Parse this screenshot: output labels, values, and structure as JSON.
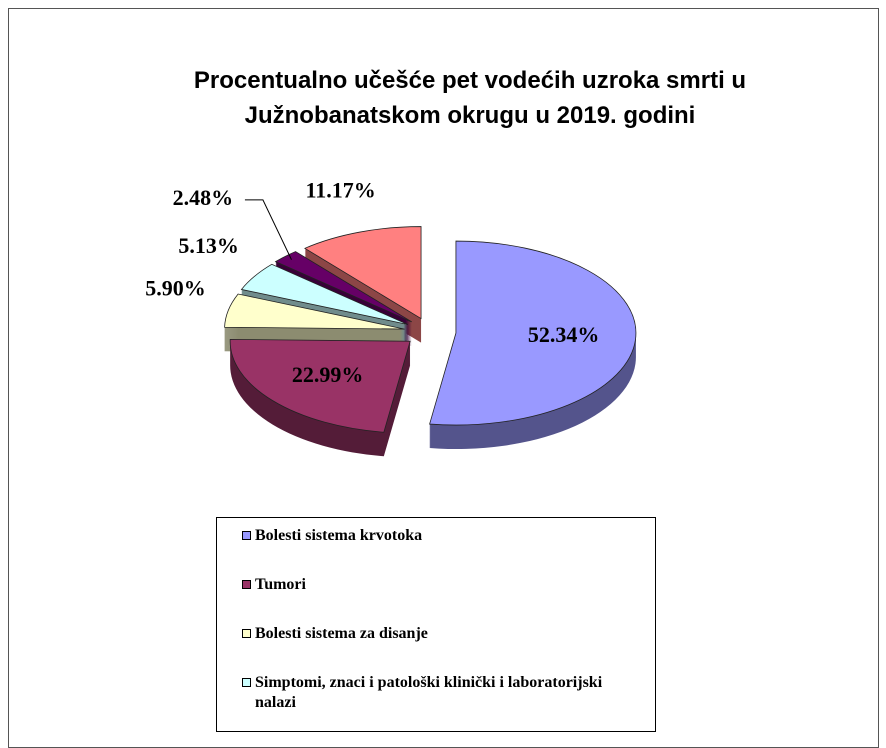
{
  "chart_data": {
    "type": "pie",
    "title": "Procentualno učešće pet vodećih uzroka smrti u Južnobanatskom okrugu u 2019. godini",
    "title_lines": [
      "Procentualno učešće pet vodećih uzroka smrti u",
      "Južnobanatskom okrugu u 2019. godini"
    ],
    "categories": [
      "Bolesti sistema krvotoka",
      "Tumori",
      "Bolesti sistema za disanje",
      "Simptomi, znaci i patološki klinički i laboratorijski nalazi",
      null,
      null
    ],
    "values": [
      52.34,
      22.99,
      5.9,
      5.13,
      2.48,
      11.17
    ],
    "value_labels": [
      "52.34%",
      "22.99%",
      "5.90%",
      "5.13%",
      "2.48%",
      "11.17%"
    ],
    "colors": [
      "#9999ff",
      "#993366",
      "#ffffcc",
      "#ccffff",
      "#660066",
      "#ff8080"
    ],
    "exploded": true,
    "three_d": true
  }
}
